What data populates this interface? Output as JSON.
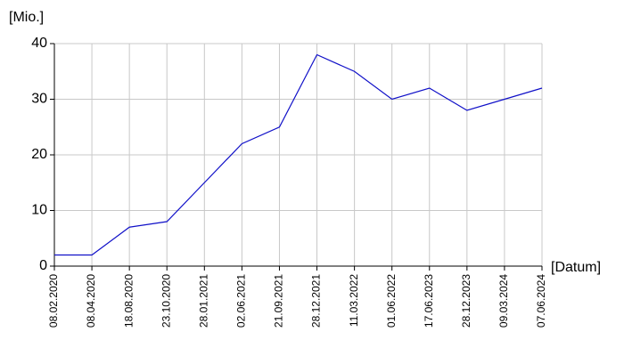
{
  "chart_data": {
    "type": "line",
    "y_label": "[Mio.]",
    "x_label": "[Datum]",
    "categories": [
      "08.02.2020",
      "08.04.2020",
      "18.08.2020",
      "23.10.2020",
      "28.01.2021",
      "02.06.2021",
      "21.09.2021",
      "28.12.2021",
      "11.03.2022",
      "01.06.2022",
      "17.06.2023",
      "28.12.2023",
      "09.03.2024",
      "07.06.2024"
    ],
    "values": [
      2,
      2,
      7,
      8,
      15,
      22,
      25,
      38,
      35,
      30,
      32,
      28,
      30,
      32
    ],
    "color": "#1010c8",
    "ylim": [
      0,
      40
    ],
    "yticks": [
      0,
      10,
      20,
      30,
      40
    ],
    "grid": true
  }
}
